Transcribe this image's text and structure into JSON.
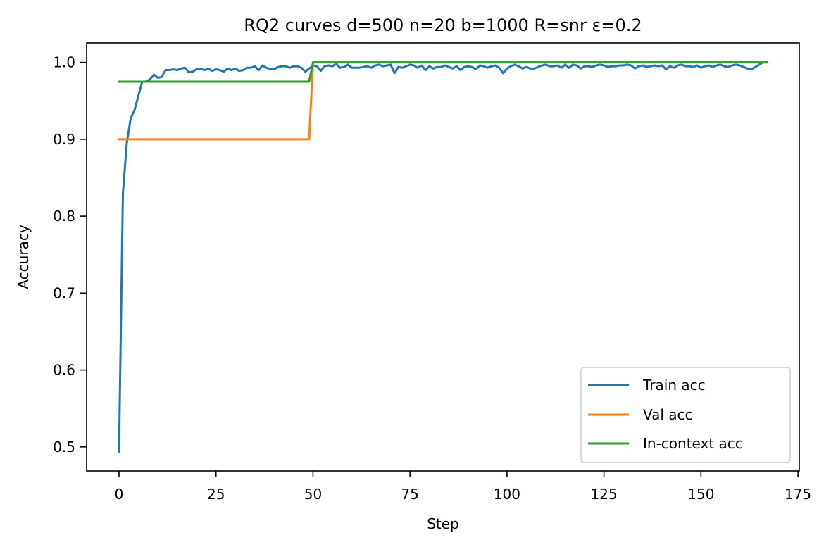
{
  "chart_data": {
    "type": "line",
    "title": "RQ2 curves d=500 n=20 b=1000 R=snr ε=0.2",
    "xlabel": "Step",
    "ylabel": "Accuracy",
    "xlim": [
      -8.35,
      175.35
    ],
    "ylim": [
      0.4687,
      1.0253
    ],
    "xticks": [
      0,
      25,
      50,
      75,
      100,
      125,
      150,
      175
    ],
    "xtick_labels": [
      "0",
      "25",
      "50",
      "75",
      "100",
      "125",
      "150",
      "175"
    ],
    "yticks": [
      0.5,
      0.6,
      0.7,
      0.8,
      0.9,
      1.0
    ],
    "ytick_labels": [
      "0.5",
      "0.6",
      "0.7",
      "0.8",
      "0.9",
      "1.0"
    ],
    "grid": false,
    "legend_position": "lower right",
    "series": [
      {
        "name": "Train acc",
        "color": "#1f77b4",
        "x_start": 0,
        "values": [
          0.494,
          0.83,
          0.895,
          0.927,
          0.938,
          0.957,
          0.975,
          0.975,
          0.978,
          0.984,
          0.98,
          0.981,
          0.99,
          0.99,
          0.991,
          0.99,
          0.992,
          0.993,
          0.987,
          0.988,
          0.991,
          0.992,
          0.99,
          0.992,
          0.989,
          0.991,
          0.99,
          0.988,
          0.992,
          0.99,
          0.992,
          0.989,
          0.99,
          0.993,
          0.993,
          0.995,
          0.99,
          0.996,
          0.993,
          0.991,
          0.991,
          0.994,
          0.995,
          0.995,
          0.993,
          0.995,
          0.995,
          0.993,
          0.988,
          0.992,
          0.996,
          0.995,
          0.989,
          0.995,
          0.996,
          0.995,
          0.998,
          0.993,
          0.994,
          0.997,
          0.993,
          0.993,
          0.993,
          0.994,
          0.995,
          0.993,
          0.996,
          0.997,
          0.995,
          0.996,
          0.997,
          0.986,
          0.994,
          0.993,
          0.995,
          0.997,
          0.996,
          0.993,
          0.996,
          0.99,
          0.995,
          0.992,
          0.994,
          0.994,
          0.996,
          0.994,
          0.992,
          0.995,
          0.99,
          0.994,
          0.995,
          0.994,
          0.991,
          0.996,
          0.995,
          0.993,
          0.995,
          0.996,
          0.993,
          0.986,
          0.992,
          0.995,
          0.997,
          0.995,
          0.992,
          0.994,
          0.992,
          0.992,
          0.994,
          0.996,
          0.997,
          0.995,
          0.995,
          0.996,
          0.993,
          0.997,
          0.993,
          0.997,
          0.996,
          0.992,
          0.995,
          0.995,
          0.994,
          0.996,
          0.997,
          0.996,
          0.994,
          0.995,
          0.995,
          0.996,
          0.996,
          0.997,
          0.996,
          0.992,
          0.995,
          0.996,
          0.994,
          0.995,
          0.996,
          0.995,
          0.996,
          0.991,
          0.995,
          0.993,
          0.996,
          0.997,
          0.995,
          0.995,
          0.994,
          0.996,
          0.993,
          0.995,
          0.996,
          0.994,
          0.996,
          0.997,
          0.995,
          0.994,
          0.996,
          0.997,
          0.996,
          0.994,
          0.992,
          0.991,
          0.994,
          0.997,
          1.0,
          1.0
        ]
      },
      {
        "name": "Val acc",
        "color": "#ff7f0e",
        "points": [
          [
            0,
            0.9
          ],
          [
            49,
            0.9
          ],
          [
            50,
            1.0
          ],
          [
            167,
            1.0
          ]
        ]
      },
      {
        "name": "In-context acc",
        "color": "#2ca02c",
        "points": [
          [
            0,
            0.975
          ],
          [
            49,
            0.975
          ],
          [
            50,
            1.0
          ],
          [
            167,
            1.0
          ]
        ]
      }
    ]
  }
}
